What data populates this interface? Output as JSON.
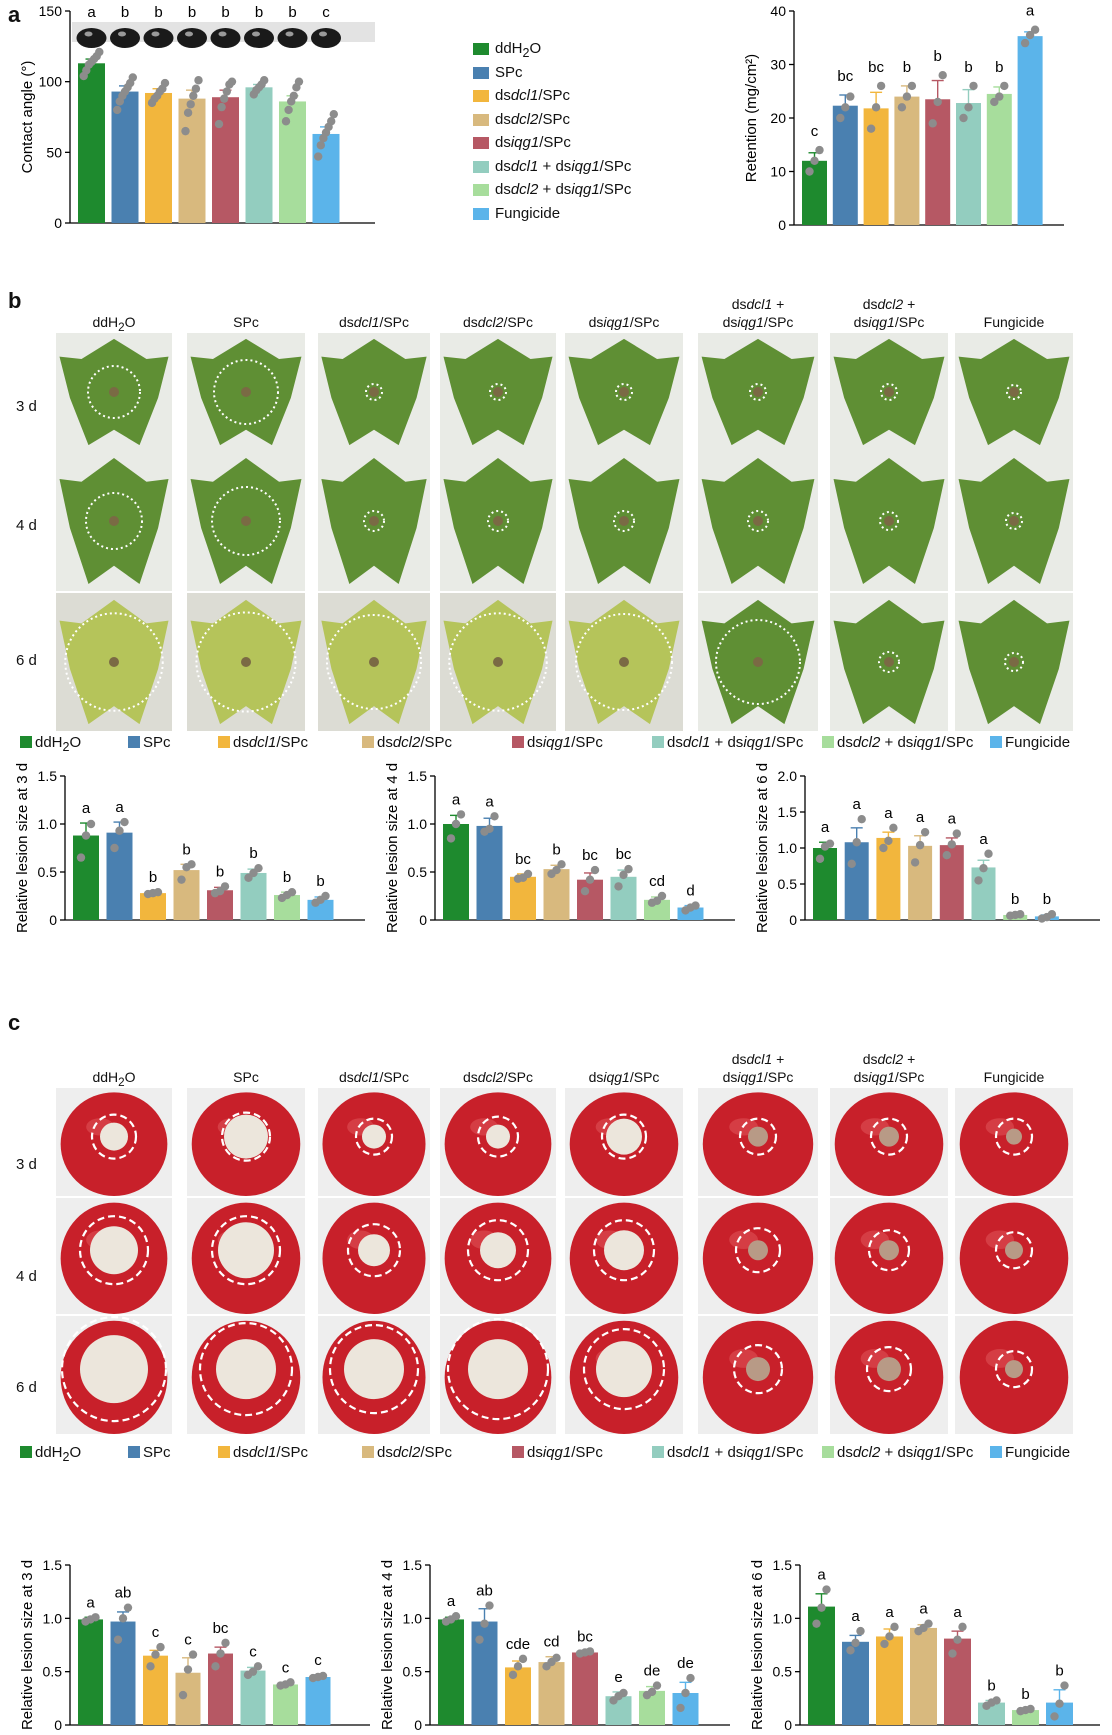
{
  "panels": {
    "a": "a",
    "b": "b",
    "c": "c"
  },
  "groups": [
    {
      "html": "ddH<sub>2</sub>O",
      "color": "#1e8a2e"
    },
    {
      "html": "SPc",
      "color": "#4a80b0"
    },
    {
      "html": "ds<i>dcl1</i>/SPc",
      "color": "#f2b63d"
    },
    {
      "html": "ds<i>dcl2</i>/SPc",
      "color": "#d8b97e"
    },
    {
      "html": "ds<i>iqg1</i>/SPc",
      "color": "#b65864"
    },
    {
      "html": "ds<i>dcl1</i> + ds<i>iqg1</i>/SPc",
      "color": "#93cdbf"
    },
    {
      "html": "ds<i>dcl2</i> + ds<i>iqg1</i>/SPc",
      "color": "#a7dd9c"
    },
    {
      "html": "Fungicide",
      "color": "#5bb4ea"
    }
  ],
  "photo_columns": [
    "ddH<sub>2</sub>O",
    "SPc",
    "ds<i>dcl1</i>/SPc",
    "ds<i>dcl2</i>/SPc",
    "ds<i>iqg1</i>/SPc",
    "ds<i>dcl1</i> +<br>ds<i>iqg1</i>/SPc",
    "ds<i>dcl2</i> +<br>ds<i>iqg1</i>/SPc",
    "Fungicide"
  ],
  "photo_rows": [
    "3 d",
    "4 d",
    "6 d"
  ],
  "chart_data": [
    {
      "id": "contact",
      "type": "bar",
      "panel": "a",
      "ylabel": "Contact angle (°)",
      "ylim": [
        0,
        150
      ],
      "yticks": [
        0,
        50,
        100,
        150
      ],
      "values": [
        113,
        93,
        92,
        88,
        89,
        96,
        86,
        63
      ],
      "errors": [
        3,
        4,
        3,
        6,
        5,
        2,
        4,
        5
      ],
      "letters": [
        "a",
        "b",
        "b",
        "b",
        "b",
        "b",
        "b",
        "c"
      ],
      "points": [
        [
          104,
          108,
          112,
          114,
          116,
          118,
          121
        ],
        [
          80,
          86,
          90,
          93,
          96,
          99,
          103
        ],
        [
          85,
          88,
          90,
          93,
          95,
          99
        ],
        [
          65,
          78,
          84,
          90,
          95,
          101
        ],
        [
          70,
          82,
          88,
          93,
          98,
          100
        ],
        [
          91,
          94,
          96,
          98,
          101
        ],
        [
          72,
          80,
          86,
          90,
          96,
          100
        ],
        [
          47,
          55,
          60,
          64,
          68,
          72,
          77
        ]
      ]
    },
    {
      "id": "retention",
      "type": "bar",
      "panel": "a",
      "ylabel": "Retention (mg/cm²)",
      "ylim": [
        0,
        40
      ],
      "yticks": [
        0,
        10,
        20,
        30,
        40
      ],
      "values": [
        12,
        22.3,
        21.8,
        24.0,
        23.5,
        22.8,
        24.5,
        35.3
      ],
      "errors": [
        1.5,
        2,
        3,
        2,
        3.5,
        2.5,
        1.3,
        0.8
      ],
      "letters": [
        "c",
        "bc",
        "bc",
        "b",
        "b",
        "b",
        "b",
        "a"
      ],
      "points": [
        [
          10,
          12,
          14
        ],
        [
          20,
          22,
          24
        ],
        [
          18,
          22,
          26
        ],
        [
          22,
          24,
          26
        ],
        [
          19,
          23,
          28
        ],
        [
          20,
          22,
          26
        ],
        [
          23,
          24,
          26
        ],
        [
          34,
          35.5,
          36.5
        ]
      ]
    },
    {
      "id": "leaf3",
      "type": "bar",
      "panel": "b",
      "ylabel": "Relative lesion size at 3 d",
      "ylim": [
        0,
        1.5
      ],
      "yticks": [
        0,
        0.5,
        1.0,
        1.5
      ],
      "values": [
        0.88,
        0.91,
        0.28,
        0.52,
        0.31,
        0.49,
        0.26,
        0.21
      ],
      "errors": [
        0.13,
        0.11,
        0.01,
        0.06,
        0.03,
        0.04,
        0.03,
        0.03
      ],
      "letters": [
        "a",
        "a",
        "b",
        "b",
        "b",
        "b",
        "b",
        "b"
      ],
      "points": [
        [
          0.65,
          0.88,
          1.0
        ],
        [
          0.75,
          0.93,
          1.02
        ],
        [
          0.27,
          0.28,
          0.29
        ],
        [
          0.42,
          0.55,
          0.58
        ],
        [
          0.28,
          0.3,
          0.35
        ],
        [
          0.44,
          0.49,
          0.54
        ],
        [
          0.23,
          0.26,
          0.29
        ],
        [
          0.18,
          0.21,
          0.25
        ]
      ]
    },
    {
      "id": "leaf4",
      "type": "bar",
      "panel": "b",
      "ylabel": "Relative lesion size at 4 d",
      "ylim": [
        0,
        1.5
      ],
      "yticks": [
        0,
        0.5,
        1.0,
        1.5
      ],
      "values": [
        1.0,
        0.98,
        0.45,
        0.53,
        0.42,
        0.45,
        0.21,
        0.13
      ],
      "errors": [
        0.09,
        0.08,
        0.03,
        0.04,
        0.07,
        0.07,
        0.03,
        0.02
      ],
      "letters": [
        "a",
        "a",
        "bc",
        "b",
        "bc",
        "bc",
        "cd",
        "d"
      ],
      "points": [
        [
          0.85,
          1.0,
          1.1
        ],
        [
          0.92,
          0.95,
          1.08
        ],
        [
          0.43,
          0.44,
          0.48
        ],
        [
          0.48,
          0.52,
          0.58
        ],
        [
          0.3,
          0.42,
          0.52
        ],
        [
          0.35,
          0.47,
          0.53
        ],
        [
          0.18,
          0.2,
          0.25
        ],
        [
          0.1,
          0.13,
          0.15
        ]
      ]
    },
    {
      "id": "leaf6",
      "type": "bar",
      "panel": "b",
      "ylabel": "Relative lesion size at 6 d",
      "ylim": [
        0,
        2.0
      ],
      "yticks": [
        0,
        0.5,
        1.0,
        1.5,
        2.0
      ],
      "values": [
        1.0,
        1.08,
        1.14,
        1.03,
        1.04,
        0.73,
        0.07,
        0.05
      ],
      "errors": [
        0.08,
        0.2,
        0.08,
        0.14,
        0.1,
        0.1,
        0.01,
        0.02
      ],
      "letters": [
        "a",
        "a",
        "a",
        "a",
        "a",
        "a",
        "b",
        "b"
      ],
      "points": [
        [
          0.85,
          1.02,
          1.06
        ],
        [
          0.78,
          1.08,
          1.4
        ],
        [
          1.0,
          1.1,
          1.28
        ],
        [
          0.8,
          1.04,
          1.22
        ],
        [
          0.9,
          1.05,
          1.2
        ],
        [
          0.55,
          0.72,
          0.92
        ],
        [
          0.06,
          0.07,
          0.08
        ],
        [
          0.02,
          0.04,
          0.08
        ]
      ]
    },
    {
      "id": "tom3",
      "type": "bar",
      "panel": "c",
      "ylabel": "Relative lesion size at 3 d",
      "ylim": [
        0,
        1.5
      ],
      "yticks": [
        0,
        0.5,
        1.0,
        1.5
      ],
      "values": [
        0.99,
        0.97,
        0.65,
        0.49,
        0.67,
        0.51,
        0.38,
        0.45
      ],
      "errors": [
        0.02,
        0.09,
        0.05,
        0.14,
        0.06,
        0.03,
        0.02,
        0.02
      ],
      "letters": [
        "a",
        "ab",
        "c",
        "c",
        "bc",
        "c",
        "c",
        "c"
      ],
      "points": [
        [
          0.97,
          0.99,
          1.01
        ],
        [
          0.8,
          1.0,
          1.1
        ],
        [
          0.55,
          0.66,
          0.73
        ],
        [
          0.28,
          0.52,
          0.66
        ],
        [
          0.55,
          0.67,
          0.77
        ],
        [
          0.47,
          0.5,
          0.55
        ],
        [
          0.37,
          0.38,
          0.4
        ],
        [
          0.44,
          0.45,
          0.46
        ]
      ]
    },
    {
      "id": "tom4",
      "type": "bar",
      "panel": "c",
      "ylabel": "Relative lesion size at 4 d",
      "ylim": [
        0,
        1.5
      ],
      "yticks": [
        0,
        0.5,
        1.0,
        1.5
      ],
      "values": [
        0.99,
        0.97,
        0.54,
        0.59,
        0.68,
        0.27,
        0.32,
        0.3
      ],
      "errors": [
        0.02,
        0.12,
        0.06,
        0.05,
        0.01,
        0.04,
        0.04,
        0.1
      ],
      "letters": [
        "a",
        "ab",
        "cde",
        "cd",
        "bc",
        "e",
        "de",
        "de"
      ],
      "points": [
        [
          0.97,
          0.99,
          1.02
        ],
        [
          0.8,
          0.95,
          1.12
        ],
        [
          0.47,
          0.55,
          0.62
        ],
        [
          0.55,
          0.59,
          0.63
        ],
        [
          0.67,
          0.68,
          0.69
        ],
        [
          0.23,
          0.27,
          0.3
        ],
        [
          0.28,
          0.31,
          0.37
        ],
        [
          0.16,
          0.3,
          0.44
        ]
      ]
    },
    {
      "id": "tom6",
      "type": "bar",
      "panel": "c",
      "ylabel": "Relative lesion size at 6 d",
      "ylim": [
        0,
        1.5
      ],
      "yticks": [
        0,
        0.5,
        1.0,
        1.5
      ],
      "values": [
        1.11,
        0.78,
        0.83,
        0.91,
        0.81,
        0.21,
        0.14,
        0.21
      ],
      "errors": [
        0.12,
        0.06,
        0.07,
        0.03,
        0.07,
        0.02,
        0.01,
        0.12
      ],
      "letters": [
        "a",
        "a",
        "a",
        "a",
        "a",
        "b",
        "b",
        "b"
      ],
      "points": [
        [
          0.95,
          1.1,
          1.27
        ],
        [
          0.7,
          0.77,
          0.88
        ],
        [
          0.76,
          0.83,
          0.92
        ],
        [
          0.88,
          0.91,
          0.95
        ],
        [
          0.67,
          0.8,
          0.92
        ],
        [
          0.18,
          0.21,
          0.23
        ],
        [
          0.13,
          0.14,
          0.15
        ],
        [
          0.08,
          0.2,
          0.37
        ]
      ]
    }
  ]
}
